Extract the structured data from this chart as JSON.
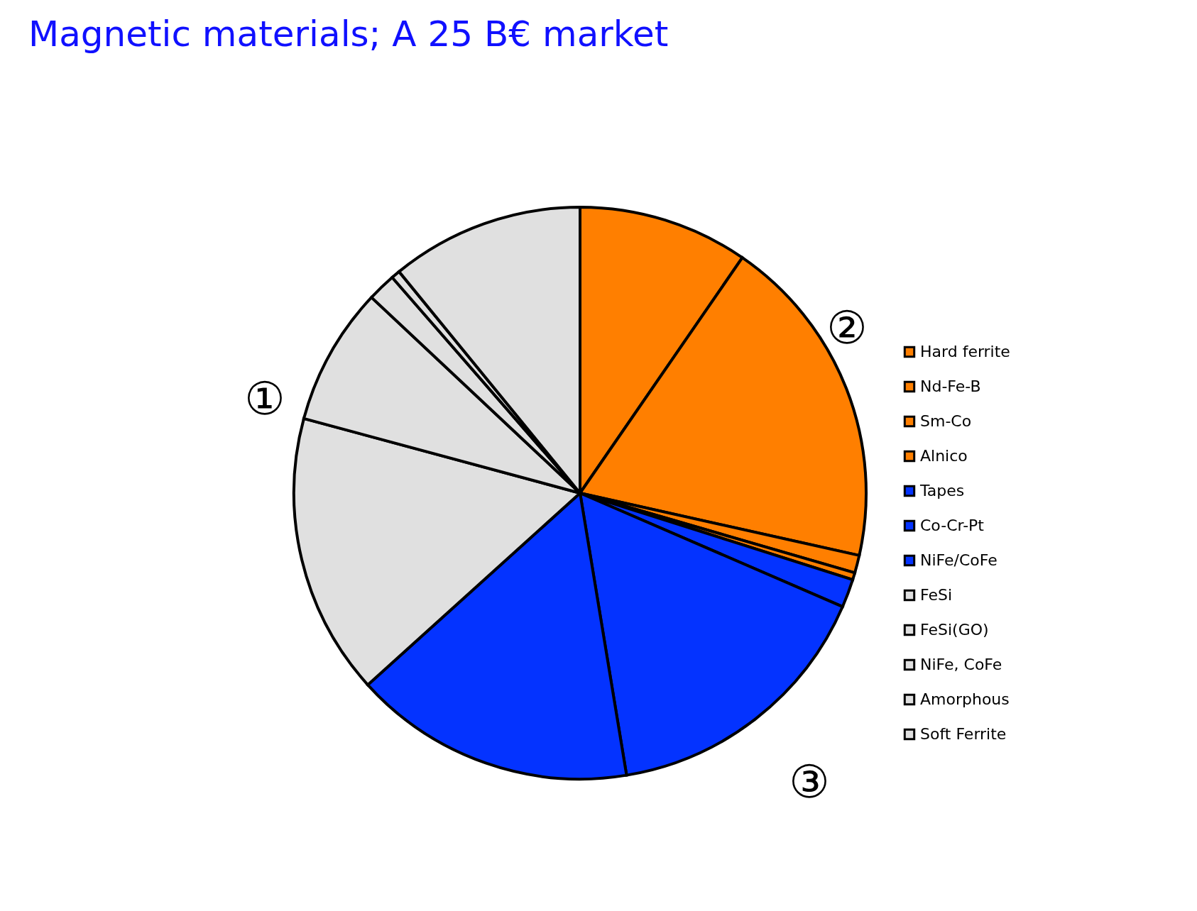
{
  "chart_data": {
    "type": "pie",
    "title": "Magnetic materials; A 25 B€ market",
    "categories": [
      "Hard ferrite",
      "Nd-Fe-B",
      "Sm-Co",
      "Alnico",
      "Tapes",
      "Co-Cr-Pt",
      "NiFe/CoFe",
      "FeSi",
      "FeSi(GO)",
      "NiFe, CoFe",
      "Amorphous",
      "Soft Ferrite"
    ],
    "values": [
      9.6,
      18.9,
      1.0,
      0.4,
      1.6,
      15.9,
      15.9,
      15.9,
      7.8,
      1.6,
      0.5,
      10.9
    ],
    "colors": [
      "#ff7f00",
      "#ff7f00",
      "#ff7f00",
      "#ff7f00",
      "#0433ff",
      "#0433ff",
      "#0433ff",
      "#e0e0e0",
      "#e0e0e0",
      "#e0e0e0",
      "#e0e0e0",
      "#e0e0e0"
    ],
    "legend": "right",
    "annotations": [
      "①",
      "②",
      "③"
    ]
  }
}
